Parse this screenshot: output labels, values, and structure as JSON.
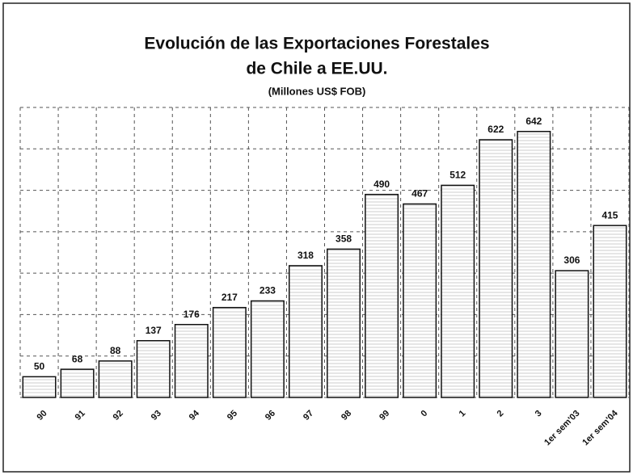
{
  "chart_data": {
    "type": "bar",
    "title": "Evolución de las Exportaciones Forestales",
    "title_line2": "de Chile a EE.UU.",
    "subtitle": "(Millones US$ FOB)",
    "categories": [
      "90",
      "91",
      "92",
      "93",
      "94",
      "95",
      "96",
      "97",
      "98",
      "99",
      "0",
      "1",
      "2",
      "3",
      "1er sem'03",
      "1er sem'04"
    ],
    "values": [
      50,
      68,
      88,
      137,
      176,
      217,
      233,
      318,
      358,
      490,
      467,
      512,
      622,
      642,
      306,
      415
    ],
    "color": "#ffffff",
    "ylim": [
      0,
      700
    ],
    "yticks": [
      0,
      100,
      200,
      300,
      400,
      500,
      600,
      700
    ],
    "grid": true
  }
}
